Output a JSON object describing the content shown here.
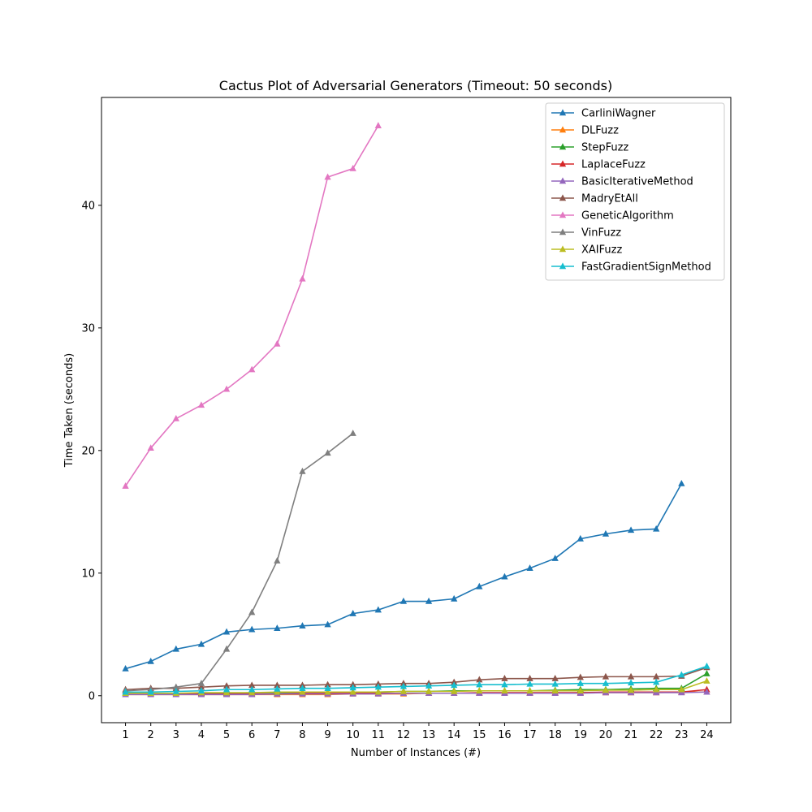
{
  "chart_data": {
    "type": "line",
    "title": "Cactus Plot of Adversarial Generators (Timeout: 50 seconds)",
    "xlabel": "Number of Instances (#)",
    "ylabel": "Time Taken (seconds)",
    "xlim": [
      0.05,
      24.95
    ],
    "ylim": [
      -2.2,
      48.8
    ],
    "x_ticks": [
      1,
      2,
      3,
      4,
      5,
      6,
      7,
      8,
      9,
      10,
      11,
      12,
      13,
      14,
      15,
      16,
      17,
      18,
      19,
      20,
      21,
      22,
      23,
      24
    ],
    "y_ticks": [
      0,
      10,
      20,
      30,
      40
    ],
    "grid": false,
    "legend_position": "top-right",
    "marker": "triangle-up",
    "series": [
      {
        "name": "CarliniWagner",
        "color": "#1f77b4",
        "values": [
          2.2,
          2.8,
          3.8,
          4.2,
          5.2,
          5.4,
          5.5,
          5.7,
          5.8,
          6.7,
          7.0,
          7.7,
          7.7,
          7.9,
          8.9,
          9.7,
          10.4,
          11.2,
          12.8,
          13.2,
          13.5,
          13.6,
          17.3
        ]
      },
      {
        "name": "DLFuzz",
        "color": "#ff7f0e",
        "values": [
          0.1,
          0.1,
          0.1,
          0.1,
          0.1,
          0.1,
          0.1,
          0.1,
          0.1,
          0.15,
          0.15,
          0.15,
          0.2,
          0.2,
          0.2,
          0.2,
          0.2,
          0.2,
          0.25,
          0.25,
          0.25,
          0.25,
          0.3,
          0.3
        ]
      },
      {
        "name": "StepFuzz",
        "color": "#2ca02c",
        "values": [
          0.2,
          0.2,
          0.2,
          0.2,
          0.2,
          0.25,
          0.25,
          0.25,
          0.3,
          0.3,
          0.3,
          0.35,
          0.35,
          0.4,
          0.4,
          0.4,
          0.4,
          0.45,
          0.5,
          0.5,
          0.55,
          0.6,
          0.6,
          1.8
        ]
      },
      {
        "name": "LaplaceFuzz",
        "color": "#d62728",
        "values": [
          0.1,
          0.15,
          0.15,
          0.15,
          0.15,
          0.15,
          0.15,
          0.2,
          0.2,
          0.2,
          0.2,
          0.2,
          0.2,
          0.2,
          0.25,
          0.25,
          0.25,
          0.25,
          0.25,
          0.3,
          0.3,
          0.3,
          0.3,
          0.5
        ]
      },
      {
        "name": "BasicIterativeMethod",
        "color": "#9467bd",
        "values": [
          0.1,
          0.1,
          0.1,
          0.1,
          0.1,
          0.1,
          0.15,
          0.15,
          0.15,
          0.15,
          0.15,
          0.2,
          0.2,
          0.2,
          0.2,
          0.2,
          0.2,
          0.2,
          0.2,
          0.25,
          0.25,
          0.25,
          0.25,
          0.3
        ]
      },
      {
        "name": "MadryEtAll",
        "color": "#8c564b",
        "values": [
          0.5,
          0.6,
          0.6,
          0.7,
          0.8,
          0.85,
          0.85,
          0.85,
          0.9,
          0.9,
          0.95,
          1.0,
          1.0,
          1.1,
          1.3,
          1.4,
          1.4,
          1.4,
          1.5,
          1.55,
          1.55,
          1.55,
          1.6,
          2.3
        ]
      },
      {
        "name": "GeneticAlgorithm",
        "color": "#e377c2",
        "values": [
          17.1,
          20.2,
          22.6,
          23.7,
          25.0,
          26.6,
          28.7,
          34.0,
          42.3,
          43.0,
          46.5
        ]
      },
      {
        "name": "VinFuzz",
        "color": "#7f7f7f",
        "values": [
          0.4,
          0.5,
          0.7,
          1.0,
          3.8,
          6.8,
          11.0,
          18.3,
          19.8,
          21.4
        ]
      },
      {
        "name": "XAIFuzz",
        "color": "#bcbd22",
        "values": [
          0.2,
          0.2,
          0.2,
          0.25,
          0.25,
          0.25,
          0.3,
          0.3,
          0.3,
          0.3,
          0.3,
          0.35,
          0.35,
          0.35,
          0.4,
          0.4,
          0.4,
          0.4,
          0.4,
          0.45,
          0.45,
          0.5,
          0.5,
          1.2
        ]
      },
      {
        "name": "FastGradientSignMethod",
        "color": "#17becf",
        "values": [
          0.3,
          0.3,
          0.35,
          0.4,
          0.5,
          0.5,
          0.55,
          0.6,
          0.6,
          0.65,
          0.7,
          0.75,
          0.8,
          0.85,
          0.9,
          0.9,
          0.95,
          0.95,
          1.0,
          1.0,
          1.05,
          1.1,
          1.7,
          2.4
        ]
      }
    ]
  }
}
